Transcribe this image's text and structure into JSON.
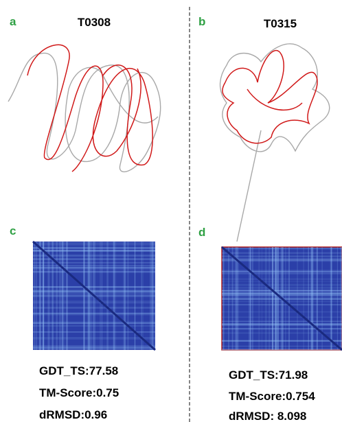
{
  "panels": [
    {
      "label": "a",
      "title": "T0308"
    },
    {
      "label": "b",
      "title": "T0315"
    },
    {
      "label": "c",
      "metrics": [
        "GDT_TS:77.58",
        "TM-Score:0.75",
        "dRMSD:0.96"
      ]
    },
    {
      "label": "d",
      "metrics": [
        "GDT_TS:71.98",
        "TM-Score:0.754",
        "dRMSD: 8.098"
      ]
    }
  ]
}
